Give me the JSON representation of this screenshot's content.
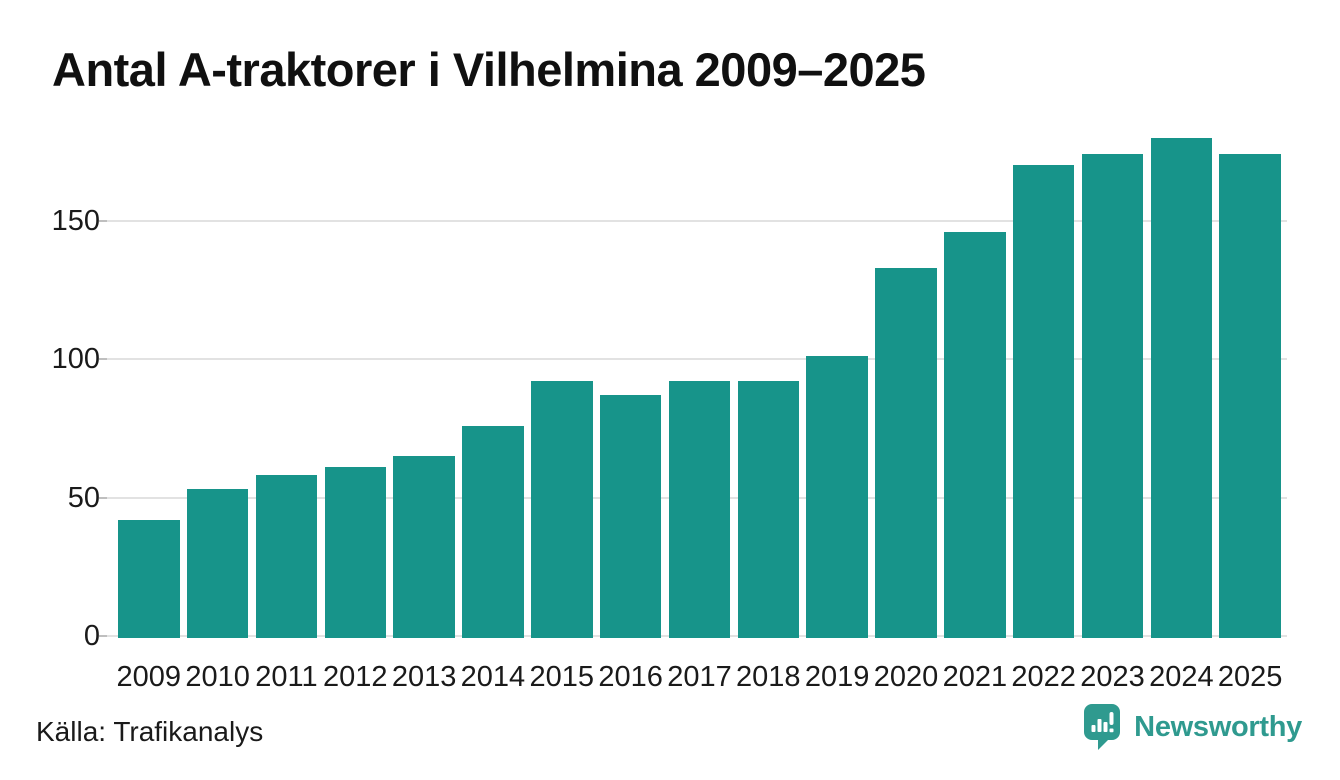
{
  "title": "Antal A-traktorer i Vilhelmina 2009–2025",
  "source": "Källa: Trafikanalys",
  "brand": {
    "name": "Newsworthy",
    "icon": "newsworthy-speech-bubble-bar-chart-icon",
    "color": "#2f9a8f"
  },
  "colors": {
    "bar": "#17948a",
    "gridline": "#e2e2e2",
    "tick_mark": "#bfbfbf",
    "text": "#1a1a1a",
    "title_text": "#101010"
  },
  "chart_data": {
    "type": "bar",
    "title": "Antal A-traktorer i Vilhelmina 2009–2025",
    "categories": [
      "2009",
      "2010",
      "2011",
      "2012",
      "2013",
      "2014",
      "2015",
      "2016",
      "2017",
      "2018",
      "2019",
      "2020",
      "2021",
      "2022",
      "2023",
      "2024",
      "2025"
    ],
    "values": [
      42,
      53,
      58,
      61,
      65,
      76,
      92,
      87,
      92,
      92,
      101,
      133,
      146,
      170,
      174,
      180,
      174
    ],
    "xlabel": "",
    "ylabel": "",
    "yticks": [
      0,
      50,
      100,
      150
    ],
    "ytick_labels": [
      "0",
      "50",
      "100",
      "150"
    ],
    "ylim": [
      0,
      186
    ],
    "grid": "horizontal-only",
    "legend": "none",
    "bar_color": "#17948a",
    "source": "Källa: Trafikanalys"
  }
}
